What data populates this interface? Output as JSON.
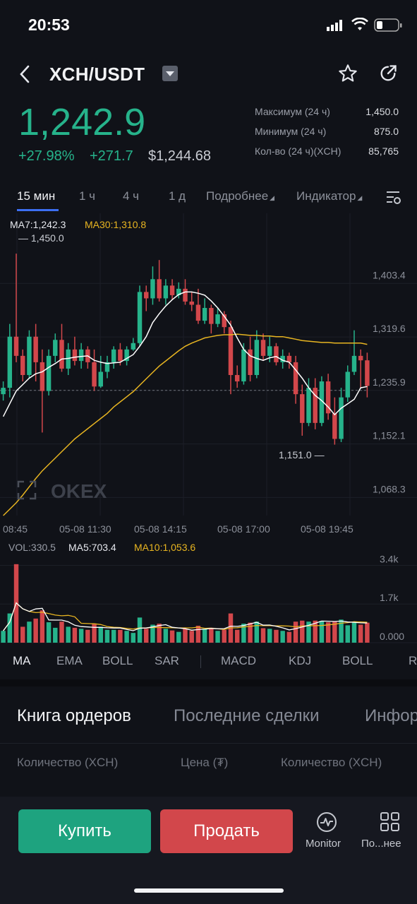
{
  "status_bar": {
    "time": "20:53"
  },
  "header": {
    "pair": "XCH/USDT"
  },
  "ticker": {
    "last_price": "1,242.9",
    "change_pct": "+27.98%",
    "change_abs": "+271.7",
    "usd_price": "$1,244.68",
    "stats": [
      {
        "label": "Максимум (24 ч)",
        "value": "1,450.0"
      },
      {
        "label": "Минимум (24 ч)",
        "value": "875.0"
      },
      {
        "label": "Кол-во (24 ч)(XCH)",
        "value": "85,765"
      }
    ]
  },
  "timeframe_tabs": [
    {
      "label": "15 мин",
      "active": true
    },
    {
      "label": "1 ч"
    },
    {
      "label": "4 ч"
    },
    {
      "label": "1 д"
    },
    {
      "label": "Подробнее"
    },
    {
      "label": "Индикатор"
    }
  ],
  "chart_legend": {
    "ma7": "MA7:1,242.3",
    "ma30": "MA30:1,310.8"
  },
  "watermark": "OKEX",
  "chart_annotations": {
    "high": "1,450.0",
    "low": "1,151.0"
  },
  "volume_legend": {
    "vol": "VOL:330.5",
    "ma5": "MA5:703.4",
    "ma10": "MA10:1,053.6"
  },
  "indicator_tabs": [
    "MA",
    "EMA",
    "BOLL",
    "SAR",
    "MACD",
    "KDJ",
    "BOLL",
    "R"
  ],
  "book_tabs": [
    "Книга ордеров",
    "Последние сделки",
    "Инфор"
  ],
  "book_columns": [
    "Количество (XCH)",
    "Цена (₮)",
    "Количество (XCH)"
  ],
  "actions": {
    "buy": "Купить",
    "sell": "Продать",
    "monitor": "Monitor",
    "more": "По...нее"
  },
  "colors": {
    "up": "#26b38b",
    "down": "#d2474b",
    "ma7": "#ffffff",
    "ma30": "#e8b521",
    "bg": "#101218"
  },
  "chart_data": {
    "type": "candlestick",
    "x_ticks": [
      "08:45",
      "05-08 11:30",
      "05-08 14:15",
      "05-08 17:00",
      "05-08 19:45"
    ],
    "y_ticks": [
      "1,403.4",
      "1,319.6",
      "1,235.9",
      "1,152.1",
      "1,068.3"
    ],
    "ylim": [
      1040,
      1480
    ],
    "current_price": "1,235.9",
    "candles": [
      {
        "o": 1230,
        "c": 1240,
        "h": 1250,
        "l": 1220
      },
      {
        "o": 1240,
        "c": 1320,
        "h": 1340,
        "l": 1225
      },
      {
        "o": 1320,
        "c": 1290,
        "h": 1450,
        "l": 1280
      },
      {
        "o": 1290,
        "c": 1260,
        "h": 1300,
        "l": 1250
      },
      {
        "o": 1260,
        "c": 1320,
        "h": 1330,
        "l": 1255
      },
      {
        "o": 1320,
        "c": 1280,
        "h": 1340,
        "l": 1250
      },
      {
        "o": 1280,
        "c": 1235,
        "h": 1300,
        "l": 1170
      },
      {
        "o": 1235,
        "c": 1290,
        "h": 1300,
        "l": 1228
      },
      {
        "o": 1290,
        "c": 1315,
        "h": 1325,
        "l": 1280
      },
      {
        "o": 1315,
        "c": 1270,
        "h": 1340,
        "l": 1265
      },
      {
        "o": 1270,
        "c": 1300,
        "h": 1310,
        "l": 1260
      },
      {
        "o": 1300,
        "c": 1282,
        "h": 1320,
        "l": 1275
      },
      {
        "o": 1282,
        "c": 1300,
        "h": 1310,
        "l": 1270
      },
      {
        "o": 1300,
        "c": 1280,
        "h": 1305,
        "l": 1270
      },
      {
        "o": 1280,
        "c": 1242,
        "h": 1300,
        "l": 1235
      },
      {
        "o": 1242,
        "c": 1265,
        "h": 1290,
        "l": 1240
      },
      {
        "o": 1265,
        "c": 1280,
        "h": 1290,
        "l": 1255
      },
      {
        "o": 1280,
        "c": 1300,
        "h": 1305,
        "l": 1270
      },
      {
        "o": 1300,
        "c": 1282,
        "h": 1310,
        "l": 1275
      },
      {
        "o": 1282,
        "c": 1300,
        "h": 1305,
        "l": 1275
      },
      {
        "o": 1300,
        "c": 1310,
        "h": 1318,
        "l": 1298
      },
      {
        "o": 1310,
        "c": 1390,
        "h": 1400,
        "l": 1305
      },
      {
        "o": 1390,
        "c": 1380,
        "h": 1400,
        "l": 1360
      },
      {
        "o": 1380,
        "c": 1410,
        "h": 1430,
        "l": 1370
      },
      {
        "o": 1410,
        "c": 1380,
        "h": 1440,
        "l": 1375
      },
      {
        "o": 1380,
        "c": 1400,
        "h": 1410,
        "l": 1370
      },
      {
        "o": 1400,
        "c": 1385,
        "h": 1410,
        "l": 1378
      },
      {
        "o": 1385,
        "c": 1395,
        "h": 1405,
        "l": 1380
      },
      {
        "o": 1395,
        "c": 1375,
        "h": 1410,
        "l": 1370
      },
      {
        "o": 1375,
        "c": 1370,
        "h": 1390,
        "l": 1360
      },
      {
        "o": 1370,
        "c": 1345,
        "h": 1395,
        "l": 1340
      },
      {
        "o": 1345,
        "c": 1365,
        "h": 1380,
        "l": 1340
      },
      {
        "o": 1365,
        "c": 1340,
        "h": 1370,
        "l": 1325
      },
      {
        "o": 1340,
        "c": 1355,
        "h": 1365,
        "l": 1335
      },
      {
        "o": 1355,
        "c": 1335,
        "h": 1360,
        "l": 1325
      },
      {
        "o": 1335,
        "c": 1260,
        "h": 1345,
        "l": 1230
      },
      {
        "o": 1260,
        "c": 1250,
        "h": 1275,
        "l": 1240
      },
      {
        "o": 1250,
        "c": 1300,
        "h": 1310,
        "l": 1245
      },
      {
        "o": 1300,
        "c": 1260,
        "h": 1320,
        "l": 1250
      },
      {
        "o": 1260,
        "c": 1315,
        "h": 1330,
        "l": 1255
      },
      {
        "o": 1315,
        "c": 1290,
        "h": 1325,
        "l": 1282
      },
      {
        "o": 1290,
        "c": 1305,
        "h": 1320,
        "l": 1280
      },
      {
        "o": 1305,
        "c": 1280,
        "h": 1310,
        "l": 1275
      },
      {
        "o": 1280,
        "c": 1290,
        "h": 1300,
        "l": 1270
      },
      {
        "o": 1290,
        "c": 1280,
        "h": 1295,
        "l": 1270
      },
      {
        "o": 1280,
        "c": 1230,
        "h": 1290,
        "l": 1215
      },
      {
        "o": 1230,
        "c": 1185,
        "h": 1245,
        "l": 1165
      },
      {
        "o": 1185,
        "c": 1240,
        "h": 1255,
        "l": 1180
      },
      {
        "o": 1240,
        "c": 1185,
        "h": 1255,
        "l": 1175
      },
      {
        "o": 1185,
        "c": 1250,
        "h": 1258,
        "l": 1180
      },
      {
        "o": 1250,
        "c": 1200,
        "h": 1262,
        "l": 1190
      },
      {
        "o": 1200,
        "c": 1160,
        "h": 1225,
        "l": 1151
      },
      {
        "o": 1160,
        "c": 1225,
        "h": 1240,
        "l": 1155
      },
      {
        "o": 1225,
        "c": 1265,
        "h": 1275,
        "l": 1218
      },
      {
        "o": 1265,
        "c": 1290,
        "h": 1330,
        "l": 1260
      },
      {
        "o": 1290,
        "c": 1283,
        "h": 1300,
        "l": 1240
      },
      {
        "o": 1283,
        "c": 1243,
        "h": 1295,
        "l": 1225
      }
    ],
    "ma7": [
      1195,
      1215,
      1235,
      1245,
      1255,
      1262,
      1265,
      1272,
      1278,
      1285,
      1286,
      1288,
      1289,
      1290,
      1283,
      1280,
      1278,
      1279,
      1280,
      1286,
      1292,
      1305,
      1320,
      1342,
      1356,
      1368,
      1378,
      1386,
      1390,
      1390,
      1388,
      1385,
      1376,
      1365,
      1352,
      1338,
      1318,
      1300,
      1290,
      1286,
      1283,
      1287,
      1289,
      1283,
      1280,
      1268,
      1255,
      1240,
      1228,
      1220,
      1210,
      1198,
      1208,
      1215,
      1222,
      1240,
      1242
    ],
    "ma30": [
      1040,
      1050,
      1060,
      1072,
      1085,
      1098,
      1110,
      1120,
      1130,
      1140,
      1150,
      1160,
      1168,
      1176,
      1184,
      1192,
      1200,
      1210,
      1218,
      1226,
      1234,
      1244,
      1254,
      1264,
      1274,
      1282,
      1290,
      1298,
      1305,
      1310,
      1314,
      1318,
      1320,
      1322,
      1323,
      1323,
      1324,
      1323,
      1322,
      1322,
      1321,
      1321,
      1320,
      1320,
      1318,
      1316,
      1314,
      1313,
      1312,
      1311,
      1311,
      1310,
      1310,
      1310,
      1310,
      1310,
      1308
    ],
    "volume_yticks": [
      "3.4k",
      "1.7k",
      "0.000"
    ],
    "volume_ylim": [
      0,
      3600
    ]
  }
}
